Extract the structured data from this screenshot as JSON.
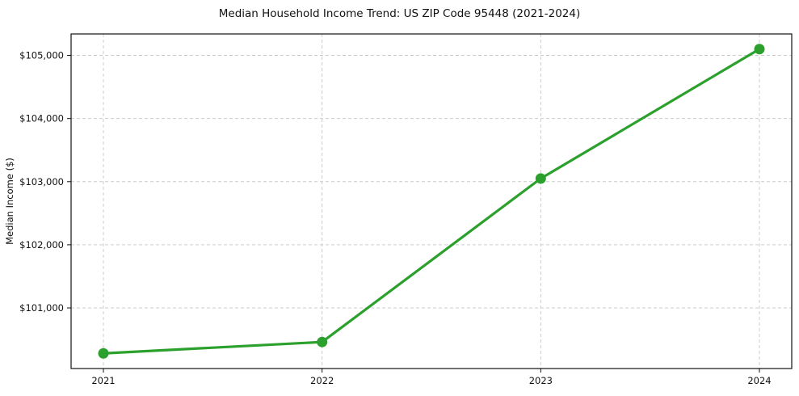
{
  "chart_data": {
    "type": "line",
    "title": "Median Household Income Trend: US ZIP Code 95448 (2021-2024)",
    "xlabel": "",
    "ylabel": "Median Income ($)",
    "categories": [
      "2021",
      "2022",
      "2023",
      "2024"
    ],
    "series": [
      {
        "name": "Median Household Income",
        "values": [
          100280,
          100460,
          103050,
          105100
        ],
        "color": "#2ca02c"
      }
    ],
    "ytick_values": [
      101000,
      102000,
      103000,
      104000,
      105000
    ],
    "ytick_labels": [
      "$101,000",
      "$102,000",
      "$103,000",
      "$104,000",
      "$105,000"
    ],
    "ylim": [
      100040,
      105340
    ],
    "grid": true,
    "grid_style": "dashed",
    "grid_color": "#cccccc",
    "spine_color": "#111111",
    "text_color": "#111111",
    "background": "#ffffff",
    "legend_position": "none",
    "marker": "circle"
  }
}
